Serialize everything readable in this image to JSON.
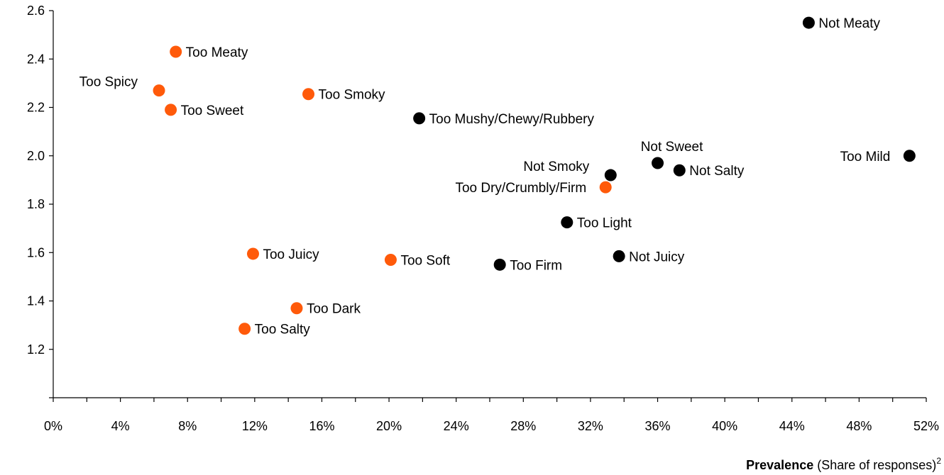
{
  "chart_data": {
    "type": "scatter",
    "xlabel": {
      "bold": "Prevalence",
      "rest": " (Share of responses)",
      "superscript": "2"
    },
    "ylabel": "",
    "xlim": [
      0,
      52
    ],
    "ylim": [
      1.0,
      2.6
    ],
    "x_ticks": [
      0,
      4,
      8,
      12,
      16,
      20,
      24,
      28,
      32,
      36,
      40,
      44,
      48,
      52
    ],
    "x_tick_labels": [
      "0%",
      "4%",
      "8%",
      "12%",
      "16%",
      "20%",
      "24%",
      "28%",
      "32%",
      "36%",
      "40%",
      "44%",
      "48%",
      "52%"
    ],
    "y_ticks": [
      1.2,
      1.4,
      1.6,
      1.8,
      2.0,
      2.2,
      2.4,
      2.6
    ],
    "y_tick_labels": [
      "1.2",
      "1.4",
      "1.6",
      "1.8",
      "2.0",
      "2.2",
      "2.4",
      "2.6"
    ],
    "grid": false,
    "colors": {
      "orange": "#FF5A0A",
      "black": "#000000"
    },
    "points": [
      {
        "label": "Not Meaty",
        "x": 45.0,
        "y": 2.55,
        "color": "black",
        "label_pos": "right"
      },
      {
        "label": "Too Meaty",
        "x": 7.3,
        "y": 2.43,
        "color": "orange",
        "label_pos": "right"
      },
      {
        "label": "Too Spicy",
        "x": 6.3,
        "y": 2.27,
        "color": "orange",
        "label_pos": "left-up"
      },
      {
        "label": "Too Smoky",
        "x": 15.2,
        "y": 2.255,
        "color": "orange",
        "label_pos": "right"
      },
      {
        "label": "Too Sweet",
        "x": 7.0,
        "y": 2.19,
        "color": "orange",
        "label_pos": "right"
      },
      {
        "label": "Too Mushy/Chewy/Rubbery",
        "x": 21.8,
        "y": 2.155,
        "color": "black",
        "label_pos": "right"
      },
      {
        "label": "Not Sweet",
        "x": 36.0,
        "y": 1.97,
        "color": "black",
        "label_pos": "above"
      },
      {
        "label": "Too Mild",
        "x": 51.0,
        "y": 2.0,
        "color": "black",
        "label_pos": "left"
      },
      {
        "label": "Not Salty",
        "x": 37.3,
        "y": 1.94,
        "color": "black",
        "label_pos": "right"
      },
      {
        "label": "Not Smoky",
        "x": 33.2,
        "y": 1.92,
        "color": "black",
        "label_pos": "left-up"
      },
      {
        "label": "Too Dry/Crumbly/Firm",
        "x": 32.9,
        "y": 1.87,
        "color": "orange",
        "label_pos": "left"
      },
      {
        "label": "Too Light",
        "x": 30.6,
        "y": 1.725,
        "color": "black",
        "label_pos": "right"
      },
      {
        "label": "Too Juicy",
        "x": 11.9,
        "y": 1.595,
        "color": "orange",
        "label_pos": "right"
      },
      {
        "label": "Not Juicy",
        "x": 33.7,
        "y": 1.585,
        "color": "black",
        "label_pos": "right"
      },
      {
        "label": "Too Soft",
        "x": 20.1,
        "y": 1.57,
        "color": "orange",
        "label_pos": "right"
      },
      {
        "label": "Too Firm",
        "x": 26.6,
        "y": 1.55,
        "color": "black",
        "label_pos": "right"
      },
      {
        "label": "Too Dark",
        "x": 14.5,
        "y": 1.37,
        "color": "orange",
        "label_pos": "right"
      },
      {
        "label": "Too Salty",
        "x": 11.4,
        "y": 1.285,
        "color": "orange",
        "label_pos": "right"
      }
    ]
  }
}
